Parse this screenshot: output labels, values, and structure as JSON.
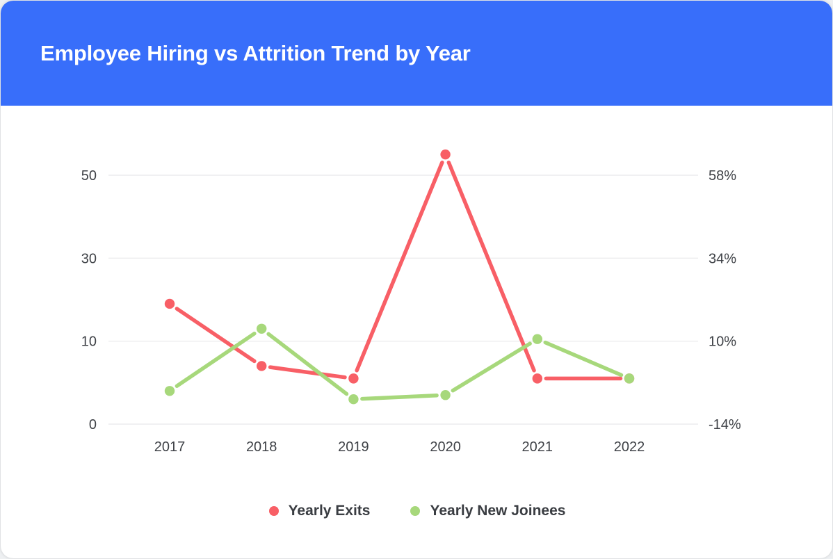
{
  "header": {
    "title": "Employee Hiring vs Attrition Trend by Year",
    "background_color": "#386efa",
    "title_color": "#ffffff"
  },
  "chart_data": {
    "type": "line",
    "title": "Employee Hiring vs Attrition Trend by Year",
    "categories": [
      "2017",
      "2018",
      "2019",
      "2020",
      "2021",
      "2022"
    ],
    "series": [
      {
        "name": "Yearly Exits",
        "color": "#f85f66",
        "values": [
          19,
          7,
          5.5,
          55,
          5.5,
          5.5
        ]
      },
      {
        "name": "Yearly New Joinees",
        "color": "#a7d87b",
        "values": [
          4,
          13,
          3,
          3.5,
          10.5,
          5.5
        ]
      }
    ],
    "left_axis": {
      "tick_values": [
        0,
        10,
        30,
        50
      ],
      "tick_labels": [
        "0",
        "10",
        "30",
        "50"
      ]
    },
    "right_axis": {
      "tick_labels": [
        "-14%",
        "10%",
        "34%",
        "58%"
      ]
    },
    "grid": true,
    "legend_position": "bottom",
    "marker": "circle",
    "line_gap_at_markers": true,
    "colors": {
      "grid_line": "#ececee",
      "axis_text": "#3f4247",
      "legend_text": "#3a3d42"
    }
  }
}
